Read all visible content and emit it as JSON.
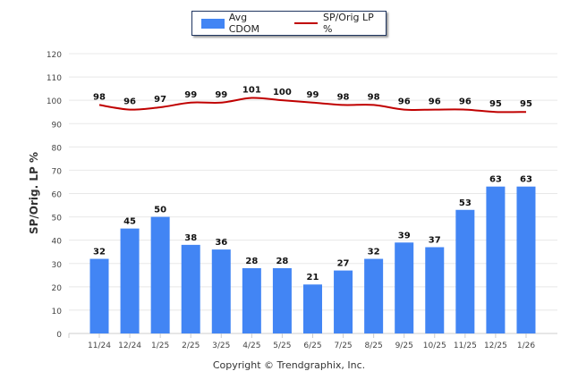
{
  "chart_data": {
    "type": "bar",
    "title": "",
    "xlabel": "",
    "ylabel": "SP/Orig. LP %",
    "ylim": [
      0,
      120
    ],
    "yticks": [
      0,
      10,
      20,
      30,
      40,
      50,
      60,
      70,
      80,
      90,
      100,
      110,
      120
    ],
    "grid": true,
    "legend_position": "top-center",
    "categories": [
      "11/24",
      "12/24",
      "1/25",
      "2/25",
      "3/25",
      "4/25",
      "5/25",
      "6/25",
      "7/25",
      "8/25",
      "9/25",
      "10/25",
      "11/25",
      "12/25",
      "1/26"
    ],
    "series": [
      {
        "name": "Avg CDOM",
        "type": "bar",
        "color": "#4285f4",
        "values": [
          32,
          45,
          50,
          38,
          36,
          28,
          28,
          21,
          27,
          32,
          39,
          37,
          53,
          63,
          63
        ]
      },
      {
        "name": "SP/Orig LP %",
        "type": "line",
        "color": "#c00000",
        "values": [
          98,
          96,
          97,
          99,
          99,
          101,
          100,
          99,
          98,
          98,
          96,
          96,
          96,
          95,
          95
        ]
      }
    ]
  },
  "footer": {
    "copyright": "Copyright © Trendgraphix, Inc."
  }
}
